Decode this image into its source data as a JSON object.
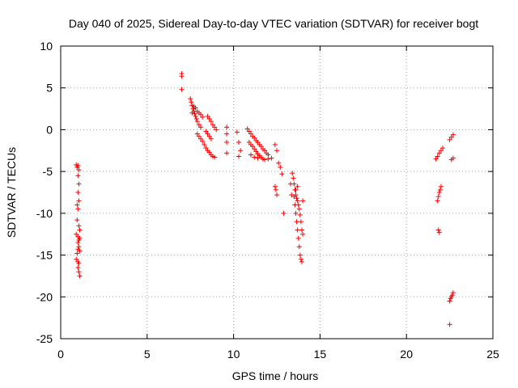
{
  "chart_data": {
    "type": "scatter",
    "title": "Day 040 of 2025, Sidereal Day-to-day VTEC variation (SDTVAR) for receiver bogt",
    "xlabel": "GPS time / hours",
    "ylabel": "SDTVAR / TECUs",
    "xlim": [
      0,
      25
    ],
    "ylim": [
      -25,
      10
    ],
    "xticks": [
      0,
      5,
      10,
      15,
      20,
      25
    ],
    "yticks": [
      -25,
      -20,
      -15,
      -10,
      -5,
      0,
      5,
      10
    ],
    "grid": true,
    "marker": "+",
    "color": "#ff0000",
    "series": [
      {
        "name": "SDTVAR",
        "points": [
          [
            0.9,
            -4.2
          ],
          [
            0.95,
            -4.5
          ],
          [
            1.0,
            -4.3
          ],
          [
            1.05,
            -4.8
          ],
          [
            1.0,
            -5.5
          ],
          [
            1.05,
            -6.5
          ],
          [
            1.0,
            -7.5
          ],
          [
            1.05,
            -8.5
          ],
          [
            1.0,
            -9.5
          ],
          [
            0.95,
            -10.8
          ],
          [
            1.05,
            -11.5
          ],
          [
            0.9,
            -12.5
          ],
          [
            1.0,
            -12.8
          ],
          [
            1.1,
            -13.0
          ],
          [
            1.0,
            -13.5
          ],
          [
            1.05,
            -14.0
          ],
          [
            1.0,
            -14.3
          ],
          [
            1.1,
            -14.5
          ],
          [
            0.9,
            -15.5
          ],
          [
            1.0,
            -15.8
          ],
          [
            1.05,
            -16.0
          ],
          [
            1.0,
            -16.5
          ],
          [
            1.05,
            -17.0
          ],
          [
            1.1,
            -17.5
          ],
          [
            0.95,
            -9.0
          ],
          [
            1.1,
            -12.0
          ],
          [
            1.05,
            -13.2
          ],
          [
            0.95,
            -14.8
          ],
          [
            7.0,
            6.7
          ],
          [
            7.0,
            6.4
          ],
          [
            7.0,
            4.8
          ],
          [
            7.5,
            3.7
          ],
          [
            7.55,
            3.3
          ],
          [
            7.6,
            2.9
          ],
          [
            7.65,
            2.5
          ],
          [
            7.7,
            2.2
          ],
          [
            7.75,
            1.9
          ],
          [
            7.8,
            1.6
          ],
          [
            7.85,
            1.3
          ],
          [
            7.9,
            1.0
          ],
          [
            8.0,
            0.6
          ],
          [
            8.1,
            0.3
          ],
          [
            7.6,
            2.0
          ],
          [
            7.7,
            2.8
          ],
          [
            7.8,
            2.6
          ],
          [
            7.9,
            2.2
          ],
          [
            8.0,
            2.0
          ],
          [
            8.1,
            1.8
          ],
          [
            8.2,
            1.5
          ],
          [
            7.9,
            -0.5
          ],
          [
            8.0,
            -0.8
          ],
          [
            8.1,
            -1.1
          ],
          [
            8.2,
            -1.4
          ],
          [
            8.3,
            -1.8
          ],
          [
            8.4,
            -2.2
          ],
          [
            8.5,
            -2.5
          ],
          [
            8.6,
            -2.7
          ],
          [
            8.7,
            -3.0
          ],
          [
            8.8,
            -3.2
          ],
          [
            8.9,
            -3.3
          ],
          [
            8.5,
            1.6
          ],
          [
            8.6,
            1.3
          ],
          [
            8.7,
            1.0
          ],
          [
            8.8,
            0.6
          ],
          [
            8.9,
            0.3
          ],
          [
            9.0,
            0.0
          ],
          [
            8.4,
            -0.2
          ],
          [
            8.5,
            -0.5
          ],
          [
            8.6,
            -0.8
          ],
          [
            8.7,
            -1.1
          ],
          [
            9.6,
            0.3
          ],
          [
            9.6,
            -0.5
          ],
          [
            9.6,
            -1.5
          ],
          [
            9.6,
            -2.8
          ],
          [
            10.2,
            -0.3
          ],
          [
            10.3,
            -1.5
          ],
          [
            10.4,
            -2.5
          ],
          [
            10.3,
            -3.2
          ],
          [
            10.8,
            0.1
          ],
          [
            10.9,
            -0.2
          ],
          [
            11.0,
            -0.5
          ],
          [
            11.1,
            -0.8
          ],
          [
            11.2,
            -1.0
          ],
          [
            11.3,
            -1.3
          ],
          [
            11.4,
            -1.5
          ],
          [
            11.5,
            -1.8
          ],
          [
            11.6,
            -2.0
          ],
          [
            11.7,
            -2.3
          ],
          [
            11.8,
            -2.5
          ],
          [
            11.9,
            -2.8
          ],
          [
            12.0,
            -3.0
          ],
          [
            10.9,
            -1.5
          ],
          [
            11.0,
            -1.8
          ],
          [
            11.1,
            -2.0
          ],
          [
            11.2,
            -2.3
          ],
          [
            11.3,
            -2.6
          ],
          [
            11.4,
            -2.9
          ],
          [
            11.5,
            -3.1
          ],
          [
            11.6,
            -3.3
          ],
          [
            11.7,
            -3.5
          ],
          [
            11.0,
            -3.0
          ],
          [
            11.2,
            -3.3
          ],
          [
            11.4,
            -3.4
          ],
          [
            11.8,
            -3.6
          ],
          [
            12.0,
            -3.5
          ],
          [
            12.2,
            -3.4
          ],
          [
            12.4,
            -1.8
          ],
          [
            12.5,
            -2.5
          ],
          [
            12.6,
            -4.0
          ],
          [
            12.7,
            -4.5
          ],
          [
            12.8,
            -5.3
          ],
          [
            12.4,
            -6.8
          ],
          [
            12.45,
            -7.2
          ],
          [
            12.5,
            -7.8
          ],
          [
            12.9,
            -10.0
          ],
          [
            13.4,
            -5.2
          ],
          [
            13.45,
            -5.8
          ],
          [
            13.5,
            -6.5
          ],
          [
            13.55,
            -7.2
          ],
          [
            13.6,
            -7.8
          ],
          [
            13.65,
            -8.2
          ],
          [
            13.7,
            -8.5
          ],
          [
            13.75,
            -9.0
          ],
          [
            13.8,
            -9.5
          ],
          [
            13.85,
            -10.2
          ],
          [
            13.9,
            -11.0
          ],
          [
            13.95,
            -12.0
          ],
          [
            14.0,
            -12.5
          ],
          [
            13.5,
            -8.0
          ],
          [
            13.55,
            -9.0
          ],
          [
            13.6,
            -10.0
          ],
          [
            13.65,
            -11.0
          ],
          [
            13.7,
            -12.0
          ],
          [
            13.75,
            -13.0
          ],
          [
            13.8,
            -14.0
          ],
          [
            13.85,
            -15.0
          ],
          [
            13.9,
            -15.5
          ],
          [
            13.95,
            -15.8
          ],
          [
            13.3,
            -6.5
          ],
          [
            13.35,
            -7.8
          ],
          [
            14.0,
            -8.5
          ],
          [
            13.6,
            -7.2
          ],
          [
            13.7,
            -6.8
          ],
          [
            21.7,
            -3.5
          ],
          [
            21.8,
            -3.2
          ],
          [
            21.9,
            -2.8
          ],
          [
            22.0,
            -2.5
          ],
          [
            22.1,
            -2.2
          ],
          [
            21.8,
            -8.5
          ],
          [
            21.85,
            -8.0
          ],
          [
            21.9,
            -7.5
          ],
          [
            21.95,
            -7.2
          ],
          [
            22.0,
            -6.8
          ],
          [
            21.85,
            -12.0
          ],
          [
            21.9,
            -12.3
          ],
          [
            22.5,
            -1.2
          ],
          [
            22.6,
            -0.9
          ],
          [
            22.7,
            -0.6
          ],
          [
            22.6,
            -3.6
          ],
          [
            22.7,
            -3.4
          ],
          [
            22.5,
            -20.5
          ],
          [
            22.55,
            -20.2
          ],
          [
            22.6,
            -20.0
          ],
          [
            22.65,
            -19.8
          ],
          [
            22.7,
            -19.5
          ],
          [
            22.5,
            -23.3
          ]
        ]
      }
    ]
  }
}
